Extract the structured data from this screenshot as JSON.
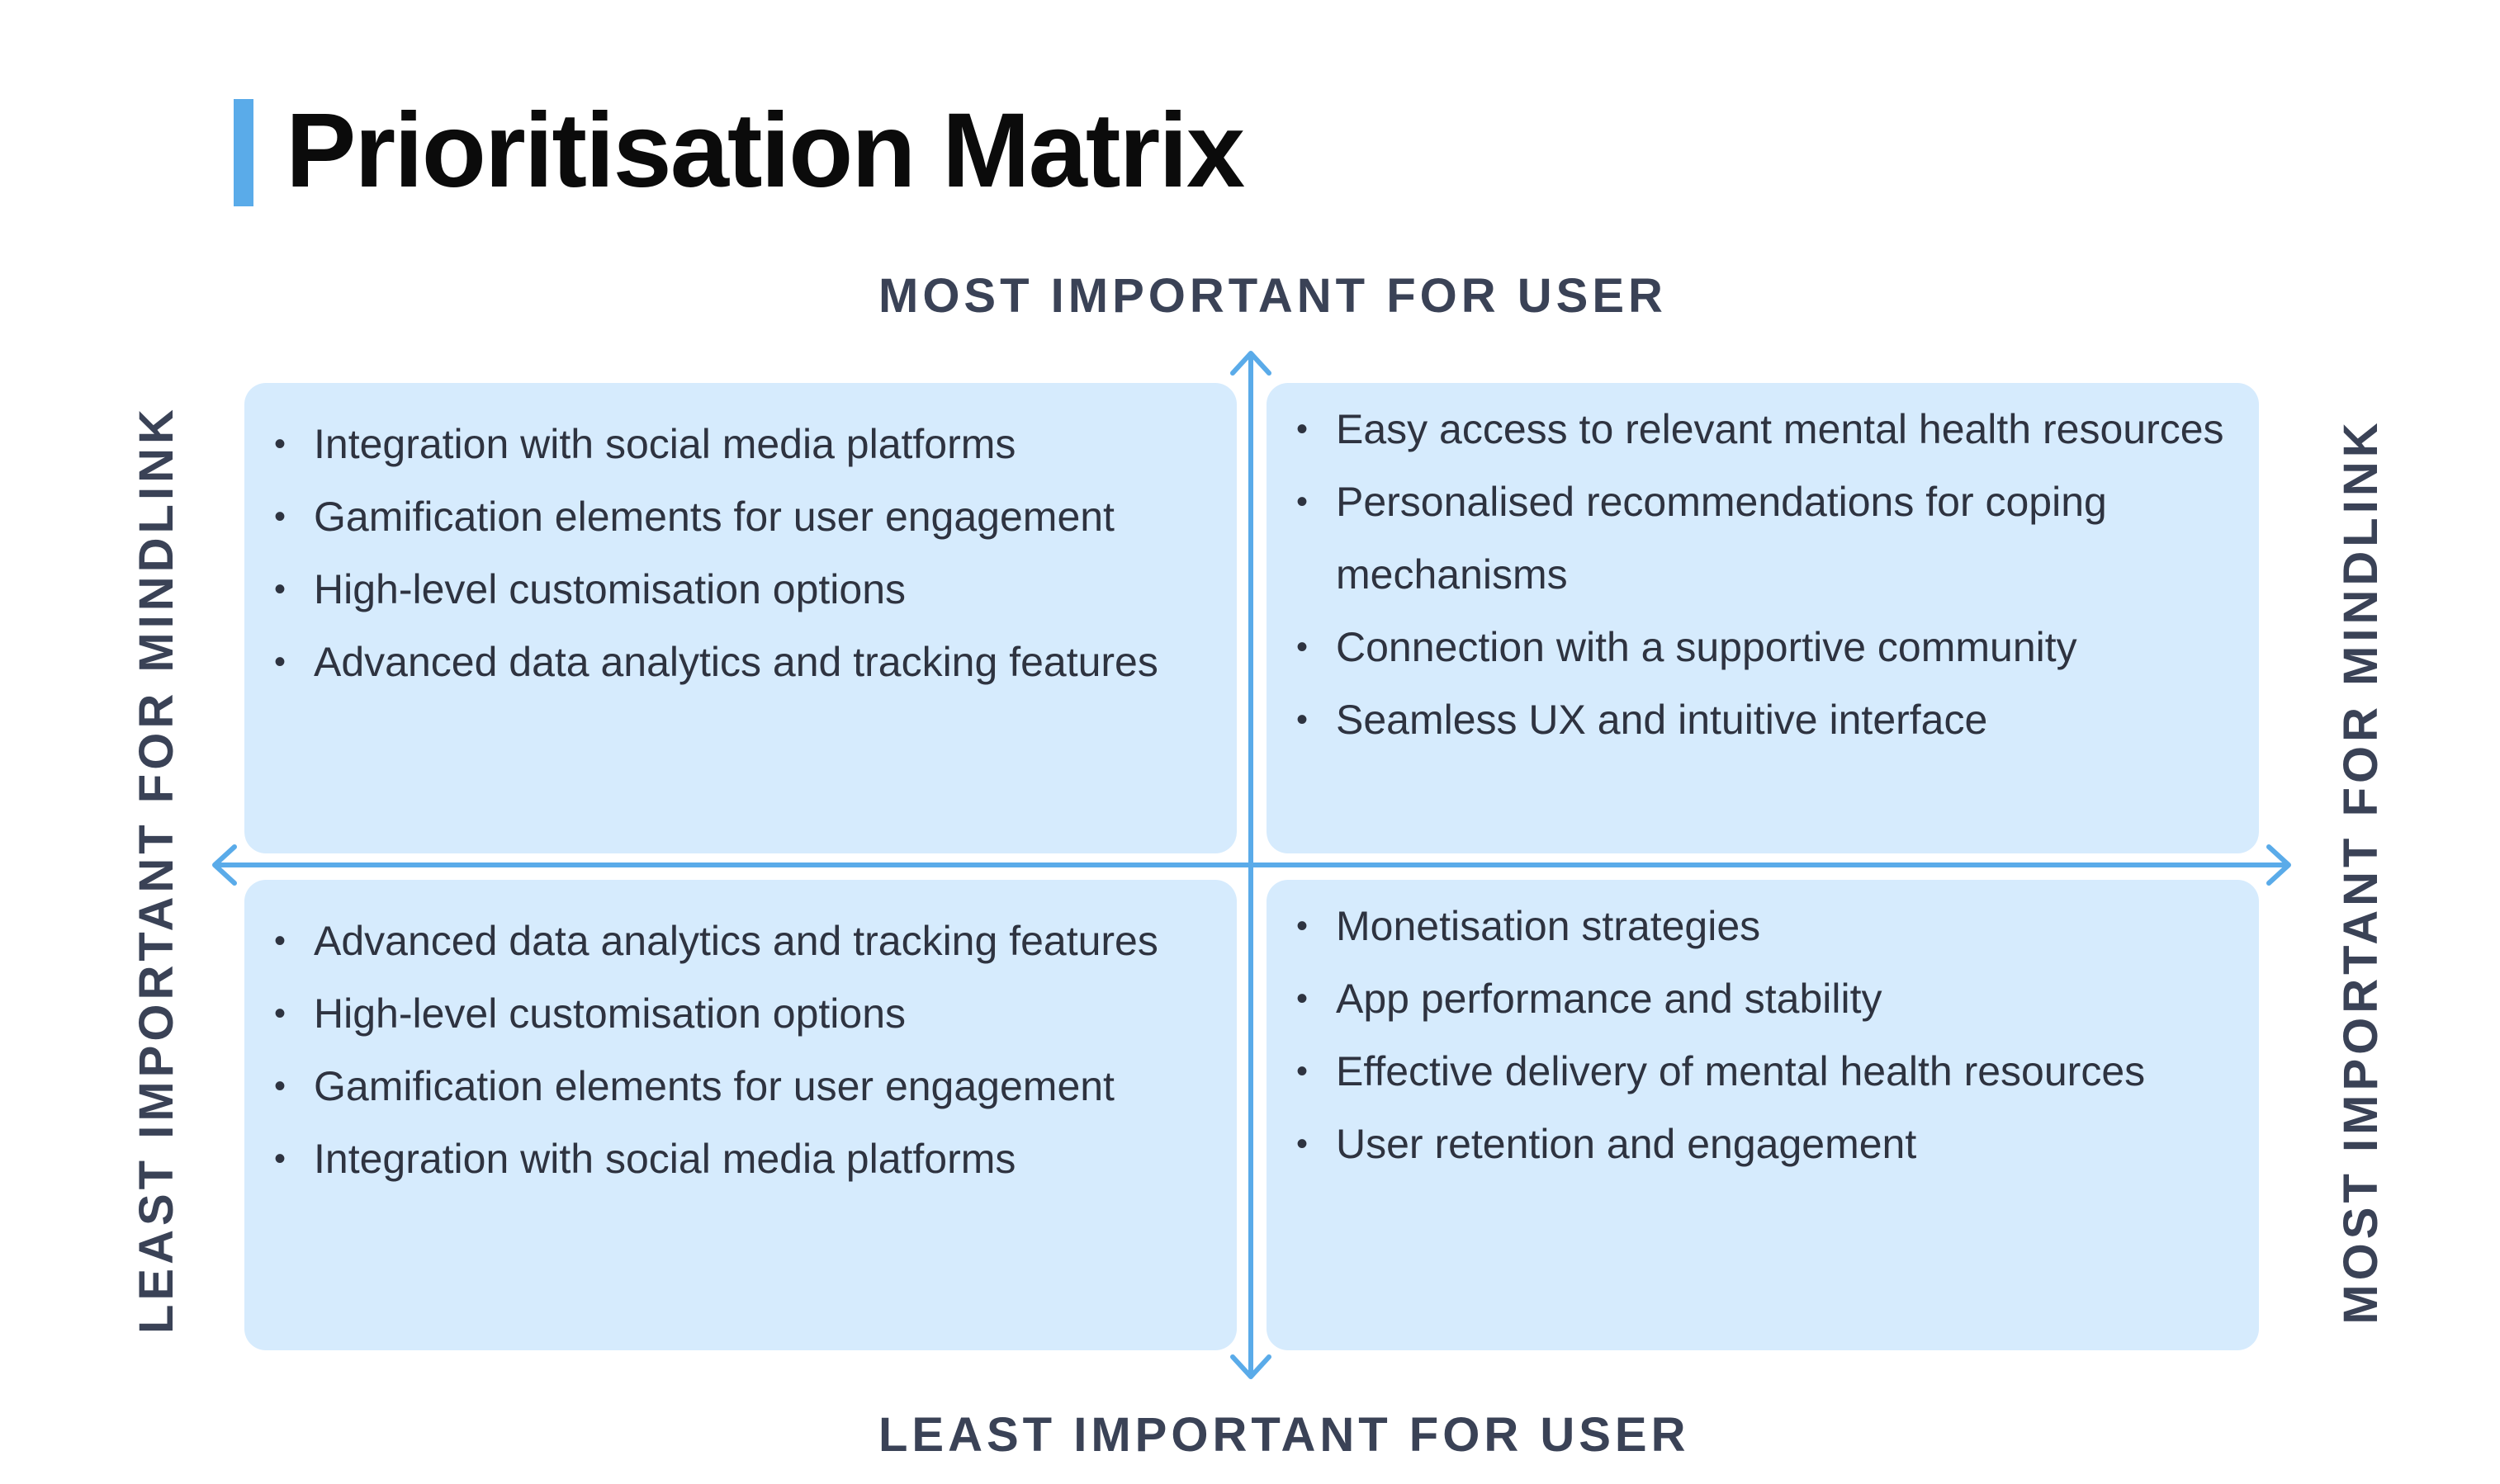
{
  "title": "Prioritisation Matrix",
  "colors": {
    "accent": "#5aabe9",
    "quadrant_bg": "#d6ebfd",
    "axis_text": "#3a4256"
  },
  "axes": {
    "top": "MOST IMPORTANT FOR USER",
    "bottom": "LEAST IMPORTANT FOR USER",
    "left": "LEAST IMPORTANT FOR MINDLINK",
    "right": "MOST IMPORTANT FOR MINDLINK"
  },
  "quadrants": {
    "top_left": {
      "items": [
        "Integration with social media platforms",
        "Gamification elements for user engagement",
        "High-level customisation options",
        "Advanced data analytics and tracking features"
      ]
    },
    "top_right": {
      "items": [
        "Easy access to relevant mental health resources",
        "Personalised recommendations for coping mechanisms",
        "Connection with a supportive community",
        "Seamless UX and intuitive interface"
      ]
    },
    "bottom_left": {
      "items": [
        "Advanced data analytics and tracking features",
        "High-level customisation options",
        "Gamification elements for user engagement",
        "Integration with social media platforms"
      ]
    },
    "bottom_right": {
      "items": [
        "Monetisation strategies",
        "App performance and stability",
        "Effective delivery of mental health resources",
        "User retention and engagement"
      ]
    }
  }
}
